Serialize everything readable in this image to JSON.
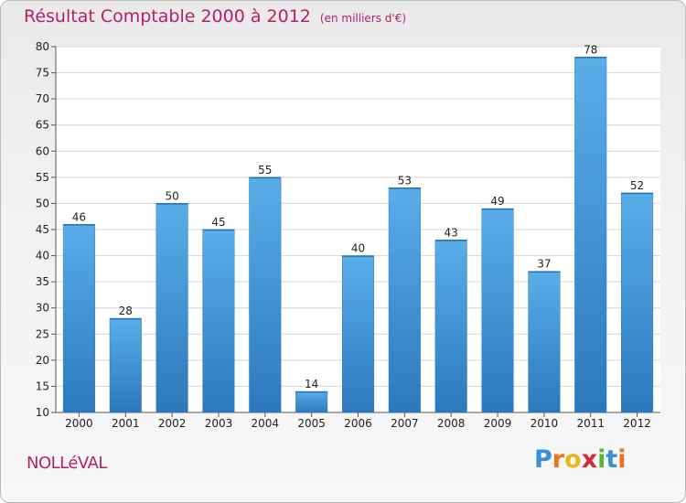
{
  "header": {
    "title": "Résultat Comptable 2000 à 2012",
    "subtitle": "(en milliers d'€)"
  },
  "place_name": "NOLLéVAL",
  "logo": {
    "letters": [
      "P",
      "r",
      "o",
      "x",
      "i",
      "t",
      "i"
    ],
    "colors": [
      "#3a8fd6",
      "#e8731d",
      "#e8b51d",
      "#d8283a",
      "#5cb531",
      "#3a8fd6",
      "#e8731d"
    ]
  },
  "colors": {
    "title": "#b51f6a",
    "bar": "#3d94d8",
    "bar_light": "#5aaee8",
    "bar_dark": "#2c78bd"
  },
  "chart_data": {
    "type": "bar",
    "title": "Résultat Comptable 2000 à 2012",
    "subtitle": "(en milliers d'€)",
    "categories": [
      "2000",
      "2001",
      "2002",
      "2003",
      "2004",
      "2005",
      "2006",
      "2007",
      "2008",
      "2009",
      "2010",
      "2011",
      "2012"
    ],
    "values": [
      46,
      28,
      50,
      45,
      55,
      14,
      40,
      53,
      43,
      49,
      37,
      78,
      52
    ],
    "ylim": [
      10,
      80
    ],
    "yticks": [
      10,
      15,
      20,
      25,
      30,
      35,
      40,
      45,
      50,
      55,
      60,
      65,
      70,
      75,
      80
    ],
    "grid": true,
    "xlabel": "",
    "ylabel": ""
  }
}
